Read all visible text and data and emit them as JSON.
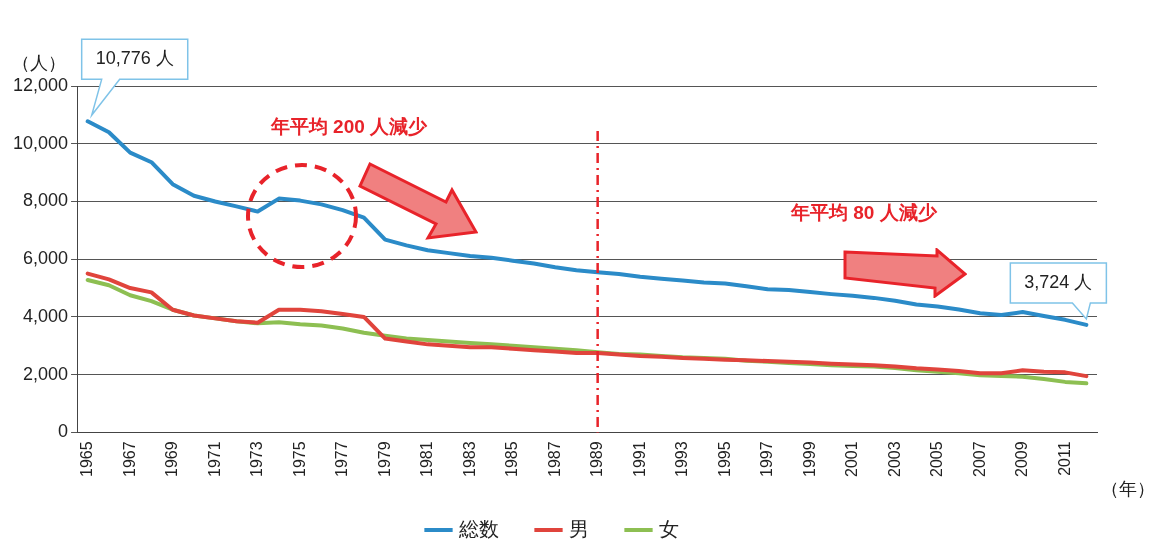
{
  "chart_data": {
    "type": "line",
    "categories": [
      "1965",
      null,
      "1967",
      null,
      "1969",
      null,
      "1971",
      null,
      "1973",
      null,
      "1975",
      null,
      "1977",
      null,
      "1979",
      null,
      "1981",
      null,
      "1983",
      null,
      "1985",
      null,
      "1987",
      null,
      "1989",
      null,
      "1991",
      null,
      "1993",
      null,
      "1995",
      null,
      "1997",
      null,
      "1999",
      null,
      "2001",
      null,
      "2003",
      null,
      "2005",
      null,
      "2007",
      null,
      "2009",
      null,
      "2011",
      null
    ],
    "series": [
      {
        "name": "総数",
        "color": "#2b8bc8",
        "values": [
          10776,
          10400,
          9690,
          9360,
          8600,
          8200,
          8000,
          7830,
          7650,
          8100,
          8030,
          7900,
          7700,
          7440,
          6680,
          6480,
          6310,
          6210,
          6110,
          6050,
          5950,
          5850,
          5720,
          5620,
          5550,
          5490,
          5390,
          5320,
          5260,
          5190,
          5160,
          5060,
          4960,
          4930,
          4860,
          4790,
          4730,
          4660,
          4560,
          4430,
          4360,
          4260,
          4130,
          4070,
          4170,
          4030,
          3900,
          3724
        ]
      },
      {
        "name": "男",
        "color": "#e0443c",
        "values": [
          5500,
          5300,
          5000,
          4850,
          4250,
          4050,
          3950,
          3850,
          3800,
          4250,
          4250,
          4200,
          4100,
          4000,
          3250,
          3150,
          3050,
          3000,
          2950,
          2950,
          2900,
          2850,
          2800,
          2750,
          2750,
          2700,
          2650,
          2620,
          2580,
          2550,
          2520,
          2500,
          2470,
          2450,
          2420,
          2380,
          2350,
          2330,
          2280,
          2220,
          2180,
          2130,
          2050,
          2050,
          2150,
          2100,
          2080,
          1950
        ]
      },
      {
        "name": "女",
        "color": "#8dbf52",
        "values": [
          5280,
          5100,
          4750,
          4550,
          4250,
          4050,
          3950,
          3850,
          3780,
          3820,
          3750,
          3700,
          3600,
          3450,
          3350,
          3250,
          3200,
          3150,
          3100,
          3050,
          3000,
          2950,
          2900,
          2850,
          2780,
          2720,
          2700,
          2650,
          2600,
          2580,
          2550,
          2480,
          2450,
          2400,
          2370,
          2330,
          2300,
          2280,
          2230,
          2150,
          2100,
          2050,
          1980,
          1950,
          1930,
          1850,
          1750,
          1700
        ]
      }
    ],
    "ylabel": "（人）",
    "xlabel": "（年）",
    "ylim": [
      0,
      12000
    ],
    "yticks": [
      {
        "value": 0,
        "label": "0"
      },
      {
        "value": 2000,
        "label": "2,000"
      },
      {
        "value": 4000,
        "label": "4,000"
      },
      {
        "value": 6000,
        "label": "6,000"
      },
      {
        "value": 8000,
        "label": "8,000"
      },
      {
        "value": 10000,
        "label": "10,000"
      },
      {
        "value": 12000,
        "label": "12,000"
      }
    ],
    "annotations": [
      {
        "text": "10,776 人",
        "x": "1965",
        "y": 10776
      },
      {
        "text": "3,724 人",
        "y": 3724
      },
      "年平均 200 人減少",
      "年平均 80 人減少"
    ],
    "ref_lines": [
      {
        "axis": "x",
        "value": "1989",
        "color": "#e8232a",
        "line_style": "dashed"
      }
    ],
    "grid": "y",
    "legend": "bottom",
    "marker": "none",
    "line_style": "solid"
  }
}
